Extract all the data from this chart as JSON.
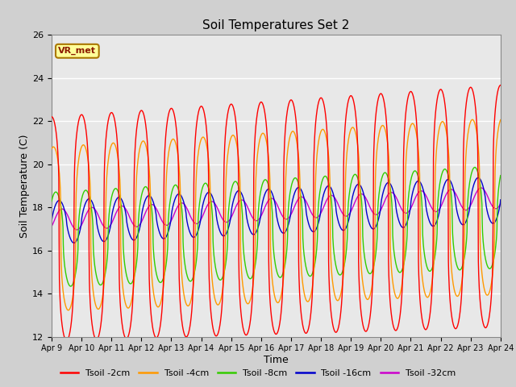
{
  "title": "Soil Temperatures Set 2",
  "xlabel": "Time",
  "ylabel": "Soil Temperature (C)",
  "ylim": [
    12,
    26
  ],
  "xlim": [
    0,
    15
  ],
  "plot_bg_color": "#e8e8e8",
  "fig_bg_color": "#d0d0d0",
  "grid_color": "#ffffff",
  "series": {
    "Tsoil -2cm": {
      "color": "#ff0000"
    },
    "Tsoil -4cm": {
      "color": "#ff9900"
    },
    "Tsoil -8cm": {
      "color": "#33cc00"
    },
    "Tsoil -16cm": {
      "color": "#0000cc"
    },
    "Tsoil -32cm": {
      "color": "#cc00cc"
    }
  },
  "annotation_text": "VR_met",
  "annotation_color": "#8b1a00",
  "annotation_bg": "#ffff99",
  "annotation_border": "#aa7700",
  "xtick_labels": [
    "Apr 9",
    "Apr 10",
    "Apr 11",
    "Apr 12",
    "Apr 13",
    "Apr 14",
    "Apr 15",
    "Apr 16",
    "Apr 17",
    "Apr 18",
    "Apr 19",
    "Apr 20",
    "Apr 21",
    "Apr 22",
    "Apr 23",
    "Apr 24"
  ],
  "ytick_vals": [
    12,
    14,
    16,
    18,
    20,
    22,
    24,
    26
  ],
  "base_temp": 17.0,
  "trend_rate": 0.07,
  "amp_2cm": 5.2,
  "amp_4cm": 3.8,
  "amp_8cm": 2.2,
  "amp_16cm": 1.0,
  "amp_32cm": 0.5,
  "phase_2cm": 1.57,
  "phase_4cm": 1.2,
  "phase_8cm": 0.7,
  "phase_16cm": 0.0,
  "phase_32cm": -0.6,
  "sharpness": 3.5
}
